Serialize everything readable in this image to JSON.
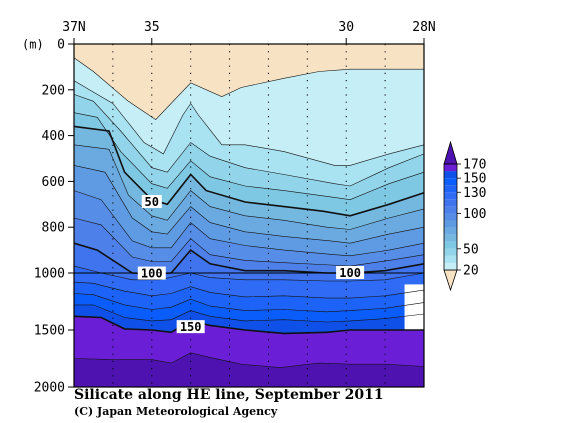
{
  "chart_data": {
    "type": "contour",
    "title": "Silicate along HE line, September 2011",
    "credit": "(C) Japan Meteorological Agency",
    "x_ticks": [
      {
        "lat": 37,
        "label": "37N"
      },
      {
        "lat": 35,
        "label": "35"
      },
      {
        "lat": 30,
        "label": "30"
      },
      {
        "lat": 28,
        "label": "28N"
      }
    ],
    "y_unit": "(m)",
    "y_ticks": [
      {
        "depth": 0,
        "label": "0"
      },
      {
        "depth": 200,
        "label": "200"
      },
      {
        "depth": 400,
        "label": "400"
      },
      {
        "depth": 600,
        "label": "600"
      },
      {
        "depth": 800,
        "label": "800"
      },
      {
        "depth": 1000,
        "label": "1000"
      },
      {
        "depth": 1500,
        "label": "1500"
      },
      {
        "depth": 2000,
        "label": "2000"
      }
    ],
    "y_scale_note": "0-1000 m and 1000-2000 m sections drawn at different scales",
    "xlim": [
      37,
      28
    ],
    "ylim": [
      0,
      2000
    ],
    "station_latitudes": [
      37,
      36,
      35,
      34,
      33,
      32,
      31,
      30,
      29,
      28
    ],
    "contour_levels": [
      10,
      20,
      30,
      40,
      50,
      60,
      70,
      80,
      90,
      100,
      110,
      120,
      130,
      140,
      150,
      160,
      170
    ],
    "highlighted_levels": [
      50,
      100,
      150
    ],
    "isolines": [
      {
        "level": 10,
        "points": [
          [
            37,
            60
          ],
          [
            36.5,
            120
          ],
          [
            35.6,
            250
          ],
          [
            34.9,
            330
          ],
          [
            34,
            170
          ],
          [
            33.2,
            230
          ],
          [
            32.7,
            190
          ],
          [
            31.6,
            150
          ],
          [
            30.7,
            120
          ],
          [
            29.9,
            110
          ],
          [
            29,
            110
          ],
          [
            28,
            110
          ]
        ]
      },
      {
        "level": 20,
        "points": [
          [
            37,
            160
          ],
          [
            36.5,
            210
          ],
          [
            36,
            260
          ],
          [
            35.2,
            430
          ],
          [
            34.7,
            480
          ],
          [
            34.2,
            310
          ],
          [
            34,
            260
          ],
          [
            33.8,
            310
          ],
          [
            33.2,
            440
          ],
          [
            32.6,
            440
          ],
          [
            31.6,
            470
          ],
          [
            30.3,
            530
          ],
          [
            29.9,
            530
          ],
          [
            28.9,
            480
          ],
          [
            28,
            440
          ]
        ]
      },
      {
        "level": 30,
        "points": [
          [
            37,
            220
          ],
          [
            36.5,
            250
          ],
          [
            35.8,
            380
          ],
          [
            35,
            540
          ],
          [
            34.6,
            560
          ],
          [
            34,
            430
          ],
          [
            33.5,
            490
          ],
          [
            32.6,
            540
          ],
          [
            31.6,
            570
          ],
          [
            30.3,
            610
          ],
          [
            29.9,
            620
          ],
          [
            28.9,
            540
          ],
          [
            28,
            480
          ]
        ]
      },
      {
        "level": 40,
        "points": [
          [
            37,
            300
          ],
          [
            36.4,
            320
          ],
          [
            35.8,
            470
          ],
          [
            35,
            610
          ],
          [
            34.6,
            630
          ],
          [
            34,
            510
          ],
          [
            33.5,
            580
          ],
          [
            32.6,
            620
          ],
          [
            31.6,
            640
          ],
          [
            30.3,
            670
          ],
          [
            29.9,
            680
          ],
          [
            28.9,
            610
          ],
          [
            28,
            560
          ]
        ]
      },
      {
        "level": 50,
        "points": [
          [
            37,
            360
          ],
          [
            36.1,
            380
          ],
          [
            35.7,
            560
          ],
          [
            35,
            680
          ],
          [
            34.6,
            700
          ],
          [
            34,
            570
          ],
          [
            33.6,
            640
          ],
          [
            32.6,
            690
          ],
          [
            31.6,
            710
          ],
          [
            30.6,
            730
          ],
          [
            29.9,
            750
          ],
          [
            28.9,
            700
          ],
          [
            28,
            650
          ]
        ]
      },
      {
        "level": 60,
        "points": [
          [
            37,
            440
          ],
          [
            36.1,
            460
          ],
          [
            35.6,
            660
          ],
          [
            35,
            750
          ],
          [
            34.6,
            770
          ],
          [
            34,
            640
          ],
          [
            33.5,
            710
          ],
          [
            32.6,
            750
          ],
          [
            31.6,
            770
          ],
          [
            30.5,
            800
          ],
          [
            29.9,
            810
          ],
          [
            28.9,
            760
          ],
          [
            28,
            720
          ]
        ]
      },
      {
        "level": 70,
        "points": [
          [
            37,
            530
          ],
          [
            36.2,
            560
          ],
          [
            35.5,
            760
          ],
          [
            35,
            820
          ],
          [
            34.6,
            830
          ],
          [
            34,
            710
          ],
          [
            33.5,
            780
          ],
          [
            32.6,
            820
          ],
          [
            31.6,
            840
          ],
          [
            30.4,
            860
          ],
          [
            29.9,
            870
          ],
          [
            28.9,
            830
          ],
          [
            28,
            800
          ]
        ]
      },
      {
        "level": 80,
        "points": [
          [
            37,
            640
          ],
          [
            36.3,
            680
          ],
          [
            35.5,
            860
          ],
          [
            35,
            890
          ],
          [
            34.5,
            890
          ],
          [
            34,
            780
          ],
          [
            33.5,
            850
          ],
          [
            32.6,
            880
          ],
          [
            31.6,
            900
          ],
          [
            30.3,
            920
          ],
          [
            29.9,
            925
          ],
          [
            28.9,
            900
          ],
          [
            28,
            870
          ]
        ]
      },
      {
        "level": 90,
        "points": [
          [
            37,
            760
          ],
          [
            36.3,
            790
          ],
          [
            35.5,
            930
          ],
          [
            35,
            950
          ],
          [
            34.5,
            950
          ],
          [
            34,
            850
          ],
          [
            33.5,
            920
          ],
          [
            32.6,
            945
          ],
          [
            31.6,
            955
          ],
          [
            30.4,
            965
          ],
          [
            29.9,
            970
          ],
          [
            28.9,
            945
          ],
          [
            28,
            920
          ]
        ]
      },
      {
        "level": 100,
        "points": [
          [
            37,
            870
          ],
          [
            36.4,
            900
          ],
          [
            35.5,
            1000
          ],
          [
            35,
            1010
          ],
          [
            34.5,
            1000
          ],
          [
            34,
            900
          ],
          [
            33.5,
            960
          ],
          [
            32.6,
            990
          ],
          [
            31.6,
            990
          ],
          [
            30.5,
            1000
          ],
          [
            29.9,
            1000
          ],
          [
            29,
            990
          ],
          [
            28,
            960
          ]
        ]
      },
      {
        "level": 110,
        "points": [
          [
            37,
            970
          ],
          [
            36.3,
            1000
          ],
          [
            35.5,
            1060
          ],
          [
            34.8,
            1060
          ],
          [
            34,
            1000
          ],
          [
            33.5,
            1040
          ],
          [
            32.6,
            1060
          ],
          [
            31.6,
            1060
          ],
          [
            30.5,
            1070
          ],
          [
            29.9,
            1070
          ],
          [
            29,
            1060
          ],
          [
            28,
            1000
          ]
        ]
      },
      {
        "level": 120,
        "points": [
          [
            37,
            1080
          ],
          [
            36.5,
            1090
          ],
          [
            35.7,
            1160
          ],
          [
            35,
            1200
          ],
          [
            34.5,
            1180
          ],
          [
            34,
            1120
          ],
          [
            33.5,
            1170
          ],
          [
            32.6,
            1210
          ],
          [
            31.6,
            1200
          ],
          [
            30.5,
            1220
          ],
          [
            29.9,
            1220
          ],
          [
            29,
            1200
          ],
          [
            28,
            1150
          ]
        ]
      },
      {
        "level": 130,
        "points": [
          [
            37,
            1180
          ],
          [
            36.5,
            1190
          ],
          [
            35.7,
            1280
          ],
          [
            35,
            1320
          ],
          [
            34.5,
            1300
          ],
          [
            34,
            1230
          ],
          [
            33.5,
            1290
          ],
          [
            32.6,
            1330
          ],
          [
            31.6,
            1320
          ],
          [
            30.5,
            1340
          ],
          [
            29.9,
            1330
          ],
          [
            29,
            1310
          ],
          [
            28,
            1260
          ]
        ]
      },
      {
        "level": 140,
        "points": [
          [
            37,
            1280
          ],
          [
            36.5,
            1280
          ],
          [
            35.7,
            1390
          ],
          [
            35,
            1420
          ],
          [
            34.5,
            1410
          ],
          [
            34,
            1330
          ],
          [
            33.5,
            1380
          ],
          [
            32.6,
            1420
          ],
          [
            31.6,
            1410
          ],
          [
            30.5,
            1430
          ],
          [
            29.9,
            1420
          ],
          [
            29,
            1400
          ],
          [
            28,
            1360
          ]
        ]
      },
      {
        "level": 150,
        "points": [
          [
            37,
            1380
          ],
          [
            36.3,
            1390
          ],
          [
            35.7,
            1490
          ],
          [
            35,
            1500
          ],
          [
            34.5,
            1520
          ],
          [
            34,
            1420
          ],
          [
            33.5,
            1460
          ],
          [
            32.6,
            1500
          ],
          [
            31.6,
            1530
          ],
          [
            30.5,
            1520
          ],
          [
            29.9,
            1500
          ],
          [
            29,
            1500
          ],
          [
            28,
            1500
          ]
        ]
      },
      {
        "level": 160,
        "points": [
          [
            37,
            1750
          ],
          [
            36,
            1760
          ],
          [
            35,
            1760
          ],
          [
            34.5,
            1790
          ],
          [
            34,
            1700
          ],
          [
            33.5,
            1740
          ],
          [
            32.7,
            1800
          ],
          [
            31.7,
            1830
          ],
          [
            30.7,
            1790
          ],
          [
            29.9,
            1800
          ],
          [
            29,
            1800
          ],
          [
            28,
            1820
          ]
        ]
      }
    ],
    "isoline_labels": [
      {
        "text": "50",
        "lat": 35.0,
        "depth": 690
      },
      {
        "text": "100",
        "lat": 35.0,
        "depth": 1005
      },
      {
        "text": "150",
        "lat": 34.0,
        "depth": 1475
      },
      {
        "text": "100",
        "lat": 29.9,
        "depth": 1000
      }
    ],
    "colorbar": {
      "levels": [
        20,
        30,
        40,
        50,
        60,
        70,
        80,
        90,
        100,
        110,
        120,
        130,
        140,
        150,
        160,
        170
      ],
      "labels": [
        "170",
        "150",
        "130",
        "100",
        "50",
        "20"
      ],
      "band_colors": [
        "#f8e2c4",
        "#c6eef7",
        "#a9e2f1",
        "#92d5ea",
        "#7ec8e3",
        "#74b8e0",
        "#6aaae0",
        "#5f9be2",
        "#568de6",
        "#4e80ea",
        "#3f74ee",
        "#2f6bf4",
        "#1d63f8",
        "#0a5dfa",
        "#0f50e8",
        "#6a1fd6",
        "#4e12b0"
      ]
    },
    "no_data_regions": [
      {
        "lat_from": 28.5,
        "lat_to": 28.0,
        "depth_from": 1100,
        "depth_to": 1500
      }
    ]
  }
}
